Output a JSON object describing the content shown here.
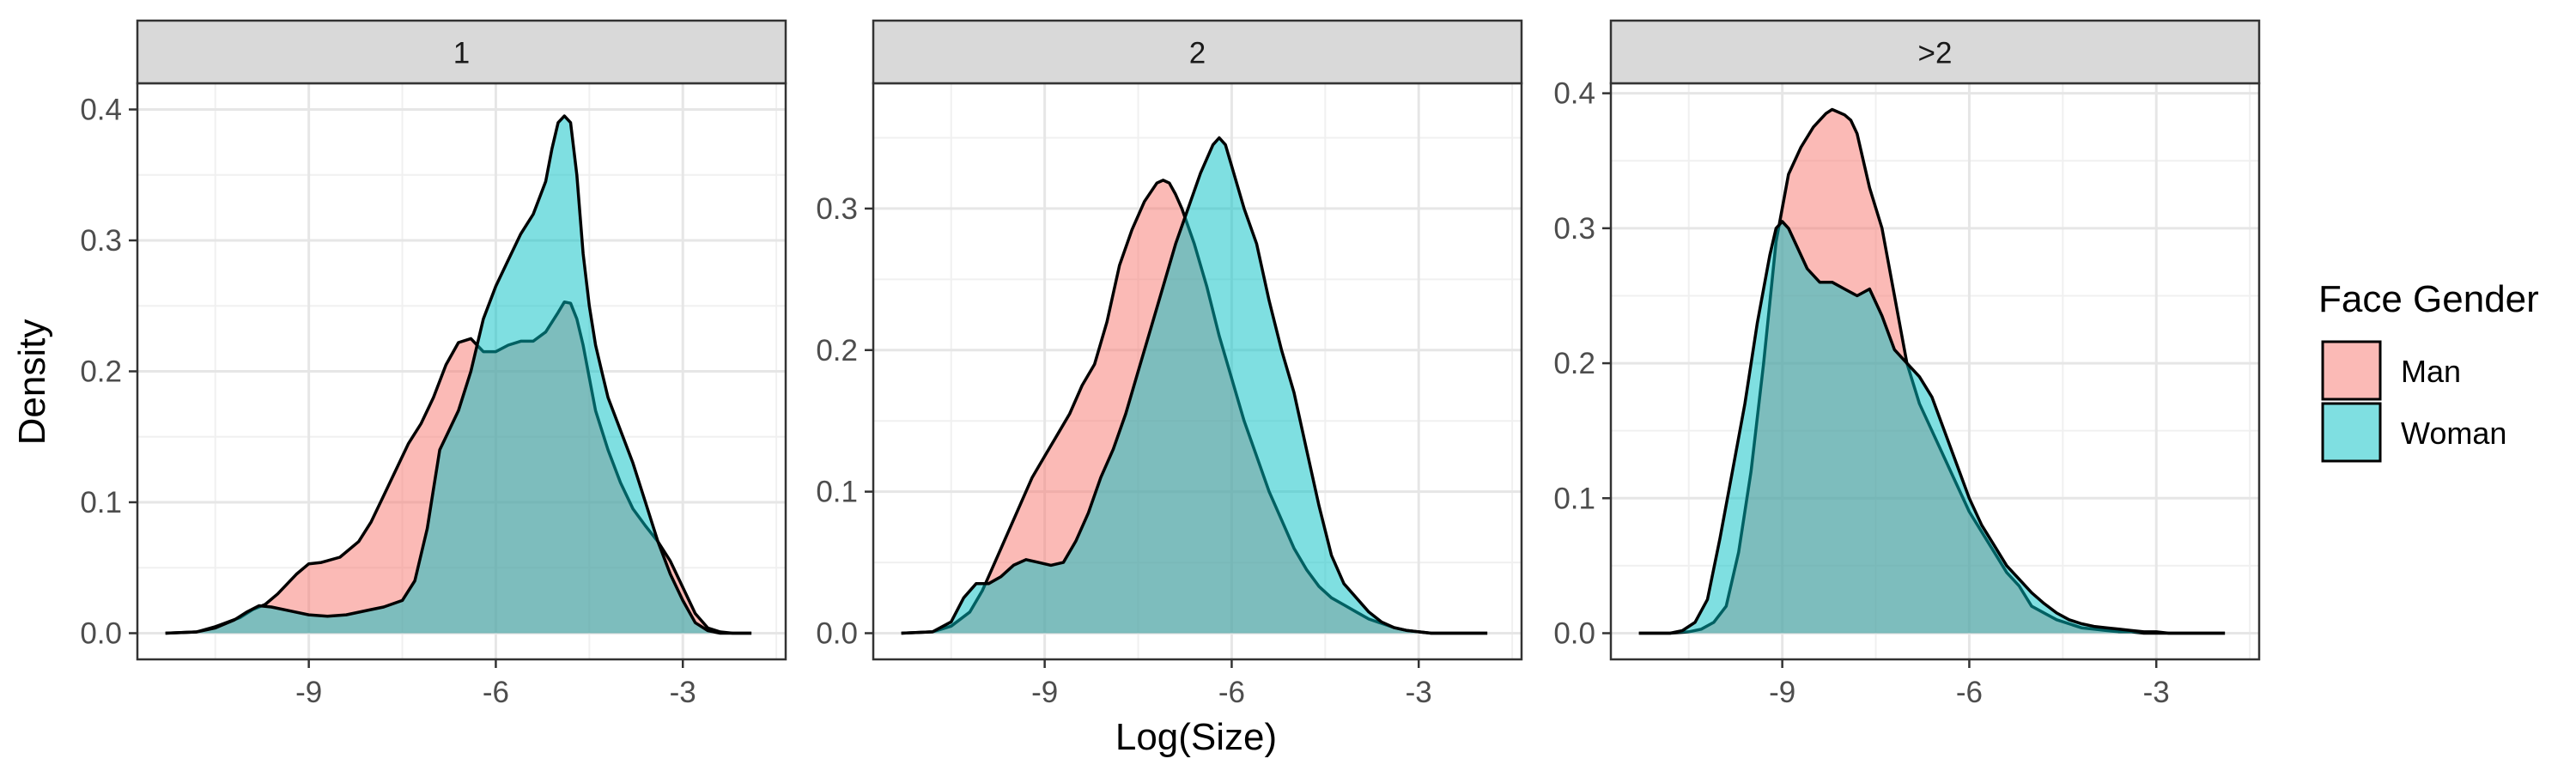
{
  "chart_data": {
    "type": "area",
    "subtype": "faceted density plot",
    "xlabel": "Log(Size)",
    "ylabel": "Density",
    "legend": {
      "title": "Face Gender",
      "placement": "right",
      "entries": [
        {
          "label": "Man",
          "color": "#F8766D"
        },
        {
          "label": "Woman",
          "color": "#00BFC4"
        }
      ]
    },
    "grid": true,
    "theme": "bw",
    "fill_opacity": 0.5,
    "x_ticks": [
      {
        "value": -9,
        "label": "-9"
      },
      {
        "value": -6,
        "label": "-6"
      },
      {
        "value": -3,
        "label": "-3"
      }
    ],
    "panels": [
      {
        "strip": "1",
        "xlim": [
          -11.75,
          -1.35
        ],
        "ylim": [
          -0.02,
          0.42
        ],
        "y_ticks": [
          {
            "value": 0.0,
            "label": "0.0"
          },
          {
            "value": 0.1,
            "label": "0.1"
          },
          {
            "value": 0.2,
            "label": "0.2"
          },
          {
            "value": 0.3,
            "label": "0.3"
          },
          {
            "value": 0.4,
            "label": "0.4"
          }
        ],
        "series": [
          {
            "name": "Man",
            "color": "#F8766D",
            "x": [
              -11.3,
              -10.8,
              -10.5,
              -10.1,
              -9.9,
              -9.7,
              -9.5,
              -9.2,
              -9.0,
              -8.8,
              -8.5,
              -8.2,
              -8.0,
              -7.8,
              -7.6,
              -7.4,
              -7.2,
              -7.0,
              -6.8,
              -6.6,
              -6.4,
              -6.3,
              -6.2,
              -6.0,
              -5.8,
              -5.6,
              -5.4,
              -5.2,
              -5.0,
              -4.9,
              -4.8,
              -4.7,
              -4.6,
              -4.5,
              -4.4,
              -4.2,
              -4.0,
              -3.8,
              -3.6,
              -3.4,
              -3.2,
              -3.0,
              -2.8,
              -2.6,
              -2.4,
              -2.2,
              -1.9
            ],
            "y": [
              0.0,
              0.001,
              0.005,
              0.012,
              0.018,
              0.022,
              0.03,
              0.045,
              0.053,
              0.054,
              0.058,
              0.07,
              0.085,
              0.105,
              0.125,
              0.145,
              0.16,
              0.18,
              0.205,
              0.222,
              0.225,
              0.22,
              0.215,
              0.215,
              0.22,
              0.223,
              0.223,
              0.23,
              0.245,
              0.253,
              0.252,
              0.24,
              0.22,
              0.195,
              0.17,
              0.14,
              0.115,
              0.095,
              0.082,
              0.07,
              0.055,
              0.035,
              0.015,
              0.004,
              0.001,
              0.0,
              0.0
            ]
          },
          {
            "name": "Woman",
            "color": "#00BFC4",
            "x": [
              -11.3,
              -10.8,
              -10.5,
              -10.2,
              -10.0,
              -9.8,
              -9.6,
              -9.3,
              -9.0,
              -8.7,
              -8.4,
              -8.0,
              -7.8,
              -7.5,
              -7.3,
              -7.1,
              -7.0,
              -6.9,
              -6.8,
              -6.6,
              -6.4,
              -6.2,
              -6.0,
              -5.8,
              -5.6,
              -5.4,
              -5.2,
              -5.1,
              -5.0,
              -4.9,
              -4.8,
              -4.7,
              -4.6,
              -4.5,
              -4.4,
              -4.3,
              -4.2,
              -4.0,
              -3.8,
              -3.6,
              -3.4,
              -3.2,
              -3.0,
              -2.8,
              -2.6,
              -2.4,
              -2.2,
              -1.9
            ],
            "y": [
              0.0,
              0.001,
              0.004,
              0.01,
              0.016,
              0.021,
              0.02,
              0.017,
              0.014,
              0.013,
              0.014,
              0.018,
              0.02,
              0.025,
              0.04,
              0.08,
              0.11,
              0.14,
              0.15,
              0.17,
              0.2,
              0.24,
              0.265,
              0.285,
              0.305,
              0.32,
              0.345,
              0.37,
              0.39,
              0.395,
              0.39,
              0.35,
              0.29,
              0.25,
              0.22,
              0.2,
              0.18,
              0.155,
              0.13,
              0.1,
              0.07,
              0.045,
              0.025,
              0.008,
              0.002,
              0.0,
              0.0,
              0.0
            ]
          }
        ]
      },
      {
        "strip": "2",
        "xlim": [
          -11.75,
          -1.35
        ],
        "ylim": [
          -0.0185,
          0.3885
        ],
        "y_ticks": [
          {
            "value": 0.0,
            "label": "0.0"
          },
          {
            "value": 0.1,
            "label": "0.1"
          },
          {
            "value": 0.2,
            "label": "0.2"
          },
          {
            "value": 0.3,
            "label": "0.3"
          }
        ],
        "series": [
          {
            "name": "Man",
            "color": "#F8766D",
            "x": [
              -11.3,
              -10.8,
              -10.5,
              -10.2,
              -10.0,
              -9.8,
              -9.6,
              -9.4,
              -9.2,
              -9.0,
              -8.8,
              -8.6,
              -8.4,
              -8.2,
              -8.0,
              -7.8,
              -7.6,
              -7.4,
              -7.2,
              -7.1,
              -7.0,
              -6.9,
              -6.8,
              -6.6,
              -6.4,
              -6.2,
              -6.0,
              -5.8,
              -5.6,
              -5.4,
              -5.2,
              -5.0,
              -4.8,
              -4.6,
              -4.4,
              -4.2,
              -4.0,
              -3.8,
              -3.6,
              -3.4,
              -3.2,
              -3.0,
              -2.8,
              -2.6,
              -2.4,
              -2.2,
              -1.9
            ],
            "y": [
              0.0,
              0.001,
              0.005,
              0.015,
              0.03,
              0.05,
              0.07,
              0.09,
              0.11,
              0.125,
              0.14,
              0.155,
              0.175,
              0.19,
              0.22,
              0.26,
              0.285,
              0.305,
              0.318,
              0.32,
              0.318,
              0.31,
              0.3,
              0.275,
              0.245,
              0.21,
              0.18,
              0.15,
              0.125,
              0.1,
              0.08,
              0.06,
              0.045,
              0.033,
              0.025,
              0.02,
              0.015,
              0.01,
              0.007,
              0.004,
              0.002,
              0.001,
              0.0,
              0.0,
              0.0,
              0.0,
              0.0
            ]
          },
          {
            "name": "Woman",
            "color": "#00BFC4",
            "x": [
              -11.3,
              -10.8,
              -10.5,
              -10.3,
              -10.1,
              -9.9,
              -9.7,
              -9.5,
              -9.3,
              -9.1,
              -8.9,
              -8.7,
              -8.5,
              -8.3,
              -8.1,
              -7.9,
              -7.7,
              -7.5,
              -7.3,
              -7.1,
              -6.9,
              -6.7,
              -6.5,
              -6.3,
              -6.2,
              -6.1,
              -6.0,
              -5.8,
              -5.6,
              -5.4,
              -5.2,
              -5.0,
              -4.8,
              -4.6,
              -4.4,
              -4.2,
              -4.0,
              -3.8,
              -3.6,
              -3.4,
              -3.2,
              -3.0,
              -2.8,
              -2.6,
              -2.4,
              -2.2,
              -1.9
            ],
            "y": [
              0.0,
              0.001,
              0.008,
              0.025,
              0.035,
              0.035,
              0.04,
              0.048,
              0.052,
              0.05,
              0.048,
              0.05,
              0.065,
              0.085,
              0.11,
              0.13,
              0.155,
              0.185,
              0.215,
              0.245,
              0.275,
              0.3,
              0.325,
              0.345,
              0.35,
              0.345,
              0.33,
              0.3,
              0.275,
              0.235,
              0.2,
              0.17,
              0.13,
              0.09,
              0.055,
              0.035,
              0.025,
              0.015,
              0.008,
              0.004,
              0.002,
              0.001,
              0.0,
              0.0,
              0.0,
              0.0,
              0.0
            ]
          }
        ]
      },
      {
        "strip": ">2",
        "xlim": [
          -11.75,
          -1.35
        ],
        "ylim": [
          -0.0194,
          0.4074
        ],
        "y_ticks": [
          {
            "value": 0.0,
            "label": "0.0"
          },
          {
            "value": 0.1,
            "label": "0.1"
          },
          {
            "value": 0.2,
            "label": "0.2"
          },
          {
            "value": 0.3,
            "label": "0.3"
          },
          {
            "value": 0.4,
            "label": "0.4"
          }
        ],
        "series": [
          {
            "name": "Man",
            "color": "#F8766D",
            "x": [
              -11.3,
              -10.8,
              -10.5,
              -10.3,
              -10.1,
              -9.9,
              -9.7,
              -9.5,
              -9.3,
              -9.1,
              -8.9,
              -8.7,
              -8.5,
              -8.3,
              -8.2,
              -8.1,
              -8.0,
              -7.9,
              -7.8,
              -7.6,
              -7.4,
              -7.2,
              -7.0,
              -6.8,
              -6.6,
              -6.4,
              -6.2,
              -6.0,
              -5.8,
              -5.6,
              -5.4,
              -5.2,
              -5.0,
              -4.8,
              -4.6,
              -4.4,
              -4.2,
              -4.0,
              -3.8,
              -3.6,
              -3.4,
              -3.2,
              -3.0,
              -2.8,
              -2.6,
              -2.4,
              -2.2,
              -1.9
            ],
            "y": [
              0.0,
              0.0,
              0.001,
              0.003,
              0.008,
              0.02,
              0.06,
              0.12,
              0.2,
              0.29,
              0.34,
              0.36,
              0.375,
              0.385,
              0.388,
              0.386,
              0.384,
              0.38,
              0.37,
              0.33,
              0.3,
              0.25,
              0.2,
              0.17,
              0.15,
              0.13,
              0.11,
              0.09,
              0.075,
              0.06,
              0.045,
              0.035,
              0.02,
              0.015,
              0.01,
              0.007,
              0.004,
              0.003,
              0.002,
              0.001,
              0.001,
              0.0,
              0.0,
              0.0,
              0.0,
              0.0,
              0.0,
              0.0
            ]
          },
          {
            "name": "Woman",
            "color": "#00BFC4",
            "x": [
              -11.3,
              -10.8,
              -10.6,
              -10.4,
              -10.2,
              -10.0,
              -9.8,
              -9.6,
              -9.4,
              -9.2,
              -9.1,
              -9.0,
              -8.9,
              -8.8,
              -8.6,
              -8.4,
              -8.2,
              -8.0,
              -7.8,
              -7.6,
              -7.4,
              -7.2,
              -7.0,
              -6.8,
              -6.6,
              -6.4,
              -6.2,
              -6.0,
              -5.8,
              -5.6,
              -5.4,
              -5.2,
              -5.0,
              -4.8,
              -4.6,
              -4.4,
              -4.2,
              -4.0,
              -3.8,
              -3.6,
              -3.4,
              -3.2,
              -3.0,
              -2.8,
              -2.6,
              -2.4,
              -2.2,
              -1.9
            ],
            "y": [
              0.0,
              0.0,
              0.002,
              0.008,
              0.025,
              0.07,
              0.12,
              0.17,
              0.23,
              0.28,
              0.3,
              0.305,
              0.3,
              0.29,
              0.27,
              0.26,
              0.26,
              0.255,
              0.25,
              0.255,
              0.235,
              0.21,
              0.2,
              0.19,
              0.175,
              0.15,
              0.125,
              0.1,
              0.08,
              0.065,
              0.05,
              0.04,
              0.03,
              0.022,
              0.015,
              0.01,
              0.007,
              0.005,
              0.004,
              0.003,
              0.002,
              0.001,
              0.001,
              0.0,
              0.0,
              0.0,
              0.0,
              0.0
            ]
          }
        ]
      }
    ]
  }
}
